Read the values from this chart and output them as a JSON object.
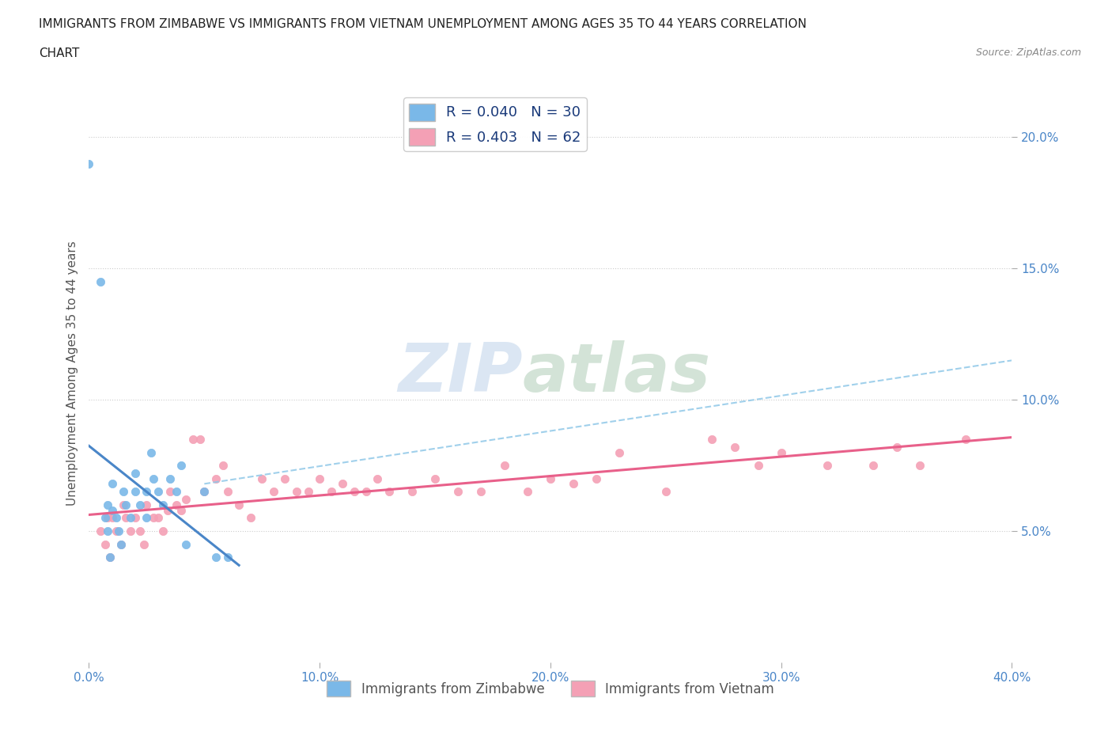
{
  "title_line1": "IMMIGRANTS FROM ZIMBABWE VS IMMIGRANTS FROM VIETNAM UNEMPLOYMENT AMONG AGES 35 TO 44 YEARS CORRELATION",
  "title_line2": "CHART",
  "source": "Source: ZipAtlas.com",
  "ylabel": "Unemployment Among Ages 35 to 44 years",
  "xlim": [
    0.0,
    0.4
  ],
  "ylim": [
    0.0,
    0.22
  ],
  "xticks": [
    0.0,
    0.1,
    0.2,
    0.3,
    0.4
  ],
  "xtick_labels": [
    "0.0%",
    "10.0%",
    "20.0%",
    "30.0%",
    "40.0%"
  ],
  "yticks_right": [
    0.05,
    0.1,
    0.15,
    0.2
  ],
  "ytick_labels_right": [
    "5.0%",
    "10.0%",
    "15.0%",
    "20.0%"
  ],
  "zimbabwe_color": "#7ab8e8",
  "vietnam_color": "#f4a0b5",
  "zimbabwe_line_color": "#4a86c8",
  "vietnam_line_color": "#e8608a",
  "dashed_line_color": "#90c8e8",
  "zimbabwe_R": 0.04,
  "zimbabwe_N": 30,
  "vietnam_R": 0.403,
  "vietnam_N": 62,
  "legend_label_zimbabwe": "Immigrants from Zimbabwe",
  "legend_label_vietnam": "Immigrants from Vietnam",
  "watermark_zip": "ZIP",
  "watermark_atlas": "atlas",
  "background_color": "#ffffff",
  "grid_color": "#cccccc",
  "zimbabwe_x": [
    0.0,
    0.005,
    0.007,
    0.008,
    0.008,
    0.009,
    0.01,
    0.01,
    0.012,
    0.013,
    0.014,
    0.015,
    0.016,
    0.018,
    0.02,
    0.02,
    0.022,
    0.025,
    0.025,
    0.027,
    0.028,
    0.03,
    0.032,
    0.035,
    0.038,
    0.04,
    0.042,
    0.05,
    0.055,
    0.06
  ],
  "zimbabwe_y": [
    0.19,
    0.145,
    0.055,
    0.06,
    0.05,
    0.04,
    0.068,
    0.058,
    0.055,
    0.05,
    0.045,
    0.065,
    0.06,
    0.055,
    0.072,
    0.065,
    0.06,
    0.055,
    0.065,
    0.08,
    0.07,
    0.065,
    0.06,
    0.07,
    0.065,
    0.075,
    0.045,
    0.065,
    0.04,
    0.04
  ],
  "vietnam_x": [
    0.005,
    0.007,
    0.008,
    0.009,
    0.01,
    0.012,
    0.014,
    0.015,
    0.016,
    0.018,
    0.02,
    0.022,
    0.024,
    0.025,
    0.028,
    0.03,
    0.032,
    0.034,
    0.035,
    0.038,
    0.04,
    0.042,
    0.045,
    0.048,
    0.05,
    0.055,
    0.058,
    0.06,
    0.065,
    0.07,
    0.075,
    0.08,
    0.085,
    0.09,
    0.095,
    0.1,
    0.105,
    0.11,
    0.115,
    0.12,
    0.125,
    0.13,
    0.14,
    0.15,
    0.16,
    0.17,
    0.18,
    0.19,
    0.2,
    0.21,
    0.22,
    0.23,
    0.25,
    0.27,
    0.28,
    0.29,
    0.3,
    0.32,
    0.34,
    0.35,
    0.36,
    0.38
  ],
  "vietnam_y": [
    0.05,
    0.045,
    0.055,
    0.04,
    0.055,
    0.05,
    0.045,
    0.06,
    0.055,
    0.05,
    0.055,
    0.05,
    0.045,
    0.06,
    0.055,
    0.055,
    0.05,
    0.058,
    0.065,
    0.06,
    0.058,
    0.062,
    0.085,
    0.085,
    0.065,
    0.07,
    0.075,
    0.065,
    0.06,
    0.055,
    0.07,
    0.065,
    0.07,
    0.065,
    0.065,
    0.07,
    0.065,
    0.068,
    0.065,
    0.065,
    0.07,
    0.065,
    0.065,
    0.07,
    0.065,
    0.065,
    0.075,
    0.065,
    0.07,
    0.068,
    0.07,
    0.08,
    0.065,
    0.085,
    0.082,
    0.075,
    0.08,
    0.075,
    0.075,
    0.082,
    0.075,
    0.085
  ]
}
